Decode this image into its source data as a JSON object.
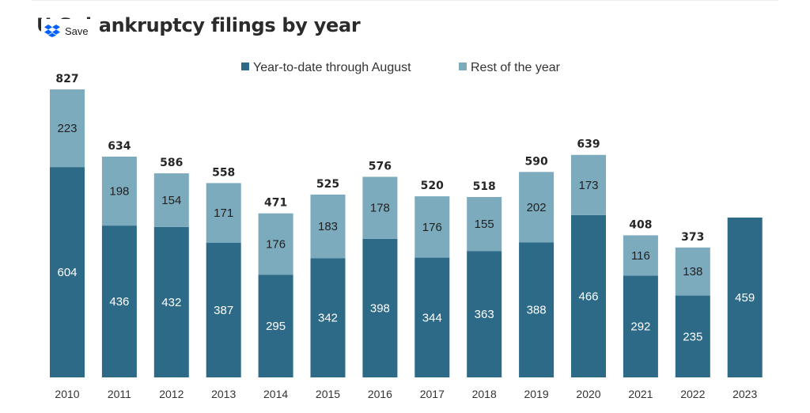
{
  "header": {
    "title": "U.S. bankruptcy filings by year"
  },
  "overlay": {
    "save_label": "Save",
    "icon": "dropbox-icon",
    "icon_color": "#0061FF"
  },
  "colors": {
    "ytd": "#2D6A88",
    "rest": "#7CABBE",
    "ytd_label": "#ffffff",
    "rest_label": "#1f1f1f"
  },
  "chart_data": {
    "type": "bar",
    "stacked": true,
    "title": "U.S. bankruptcy filings by year",
    "legend_position": "top",
    "grid": false,
    "categories": [
      "2010",
      "2011",
      "2012",
      "2013",
      "2014",
      "2015",
      "2016",
      "2017",
      "2018",
      "2019",
      "2020",
      "2021",
      "2022",
      "2023"
    ],
    "series": [
      {
        "name": "Year-to-date through August",
        "values": [
          604,
          436,
          432,
          387,
          295,
          342,
          398,
          344,
          363,
          388,
          466,
          292,
          235,
          459
        ]
      },
      {
        "name": "Rest of the year",
        "values": [
          223,
          198,
          154,
          171,
          176,
          183,
          178,
          176,
          155,
          202,
          173,
          116,
          138,
          null
        ]
      }
    ],
    "totals": [
      827,
      634,
      586,
      558,
      471,
      525,
      576,
      520,
      518,
      590,
      639,
      408,
      373,
      null
    ],
    "ylim": [
      0,
      827
    ]
  }
}
